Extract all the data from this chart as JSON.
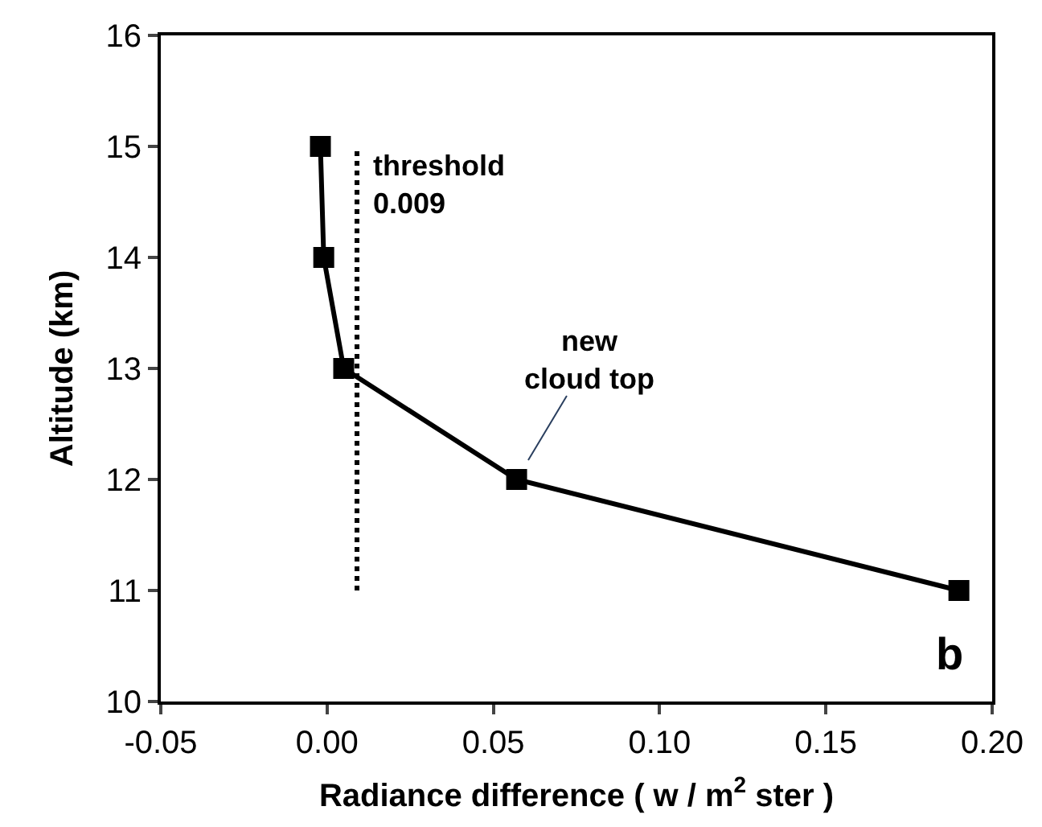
{
  "chart_data": {
    "type": "line",
    "xlabel": "Radiance difference ( w / m$^{2}$ ster )",
    "ylabel": "Altitude (km)",
    "x": [
      -0.002,
      -0.001,
      0.005,
      0.057,
      0.19
    ],
    "series": [
      {
        "color": "#000000",
        "values": [
          15,
          14,
          13,
          12,
          11
        ]
      }
    ],
    "xlim": [
      -0.05,
      0.2
    ],
    "xticks": [
      {
        "value": -0.05,
        "label": "-0.05"
      },
      {
        "value": 0,
        "label": "0.00"
      },
      {
        "value": 0.05,
        "label": "0.05"
      },
      {
        "value": 0.1,
        "label": "0.10"
      },
      {
        "value": 0.15,
        "label": "0.15"
      },
      {
        "value": 0.2,
        "label": "0.20"
      }
    ],
    "ylim": [
      10,
      16
    ],
    "yticks": [
      10,
      11,
      12,
      13,
      14,
      15,
      16
    ],
    "ref_lines": [
      {
        "axis": "x",
        "value": 0.009,
        "label": "threshold\n0.009",
        "line_style": "dotted",
        "color": "#000000"
      }
    ],
    "annotations": [
      {
        "text": "new\ncloud top",
        "x": 0.057,
        "y": 12
      },
      "b"
    ],
    "grid": false,
    "legend": false,
    "marker": "square",
    "line_style": "solid"
  }
}
